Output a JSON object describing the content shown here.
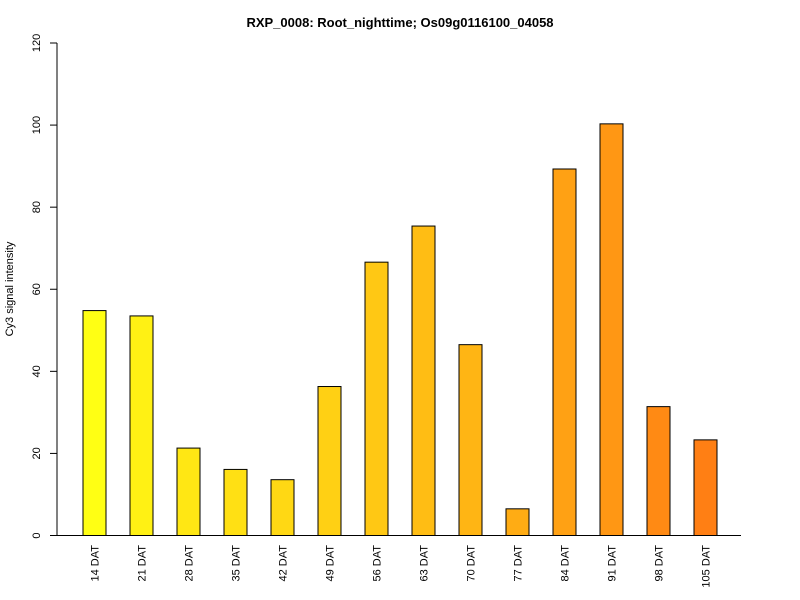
{
  "chart_data": {
    "type": "bar",
    "title": "RXP_0008: Root_nighttime; Os09g0116100_04058",
    "xlabel": "",
    "ylabel": "Cy3 signal intensity",
    "ylim": [
      0,
      120
    ],
    "yticks": [
      0,
      20,
      40,
      60,
      80,
      100,
      120
    ],
    "categories": [
      "14 DAT",
      "21 DAT",
      "28 DAT",
      "35 DAT",
      "42 DAT",
      "49 DAT",
      "56 DAT",
      "63 DAT",
      "70 DAT",
      "77 DAT",
      "84 DAT",
      "91 DAT",
      "98 DAT",
      "105 DAT"
    ],
    "values": [
      54.8,
      53.5,
      21.3,
      16.1,
      13.6,
      36.3,
      66.6,
      75.4,
      46.5,
      6.5,
      89.3,
      100.3,
      31.4,
      23.3
    ],
    "colors": [
      "#FFFF14",
      "#FFF114",
      "#FFE714",
      "#FFE014",
      "#FFD814",
      "#FFD014",
      "#FFC814",
      "#FFBD14",
      "#FFB514",
      "#FFAC14",
      "#FFA114",
      "#FF9714",
      "#FF8A14",
      "#FF7F14"
    ],
    "grid": false,
    "legend": "none"
  }
}
